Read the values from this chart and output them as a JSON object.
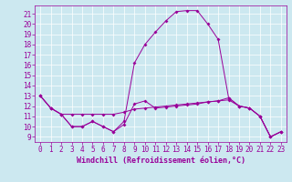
{
  "xlabel": "Windchill (Refroidissement éolien,°C)",
  "xlim": [
    -0.5,
    23.5
  ],
  "ylim": [
    8.5,
    21.8
  ],
  "yticks": [
    9,
    10,
    11,
    12,
    13,
    14,
    15,
    16,
    17,
    18,
    19,
    20,
    21
  ],
  "xticks": [
    0,
    1,
    2,
    3,
    4,
    5,
    6,
    7,
    8,
    9,
    10,
    11,
    12,
    13,
    14,
    15,
    16,
    17,
    18,
    19,
    20,
    21,
    22,
    23
  ],
  "bg_color": "#cce8f0",
  "line_color": "#990099",
  "grid_color": "#aaccdd",
  "series1_y": [
    13.0,
    11.8,
    11.2,
    10.0,
    10.0,
    10.5,
    10.0,
    9.5,
    10.2,
    12.2,
    12.5,
    11.8,
    11.9,
    12.0,
    12.1,
    12.2,
    12.4,
    12.5,
    12.8,
    12.0,
    11.8,
    11.0,
    9.0,
    9.5
  ],
  "series2_y": [
    13.0,
    11.8,
    11.2,
    11.2,
    11.2,
    11.2,
    11.2,
    11.2,
    11.4,
    11.7,
    11.8,
    11.9,
    12.0,
    12.1,
    12.2,
    12.3,
    12.4,
    12.5,
    12.6,
    12.0,
    11.8,
    11.0,
    9.0,
    9.5
  ],
  "series3_y": [
    13.0,
    11.8,
    11.2,
    10.0,
    10.0,
    10.5,
    10.0,
    9.5,
    10.5,
    16.2,
    18.0,
    19.2,
    20.3,
    21.2,
    21.3,
    21.3,
    20.0,
    18.5,
    12.8,
    12.0,
    11.8,
    11.0,
    9.0,
    9.5
  ],
  "tick_fontsize": 5.5,
  "xlabel_fontsize": 6.0
}
